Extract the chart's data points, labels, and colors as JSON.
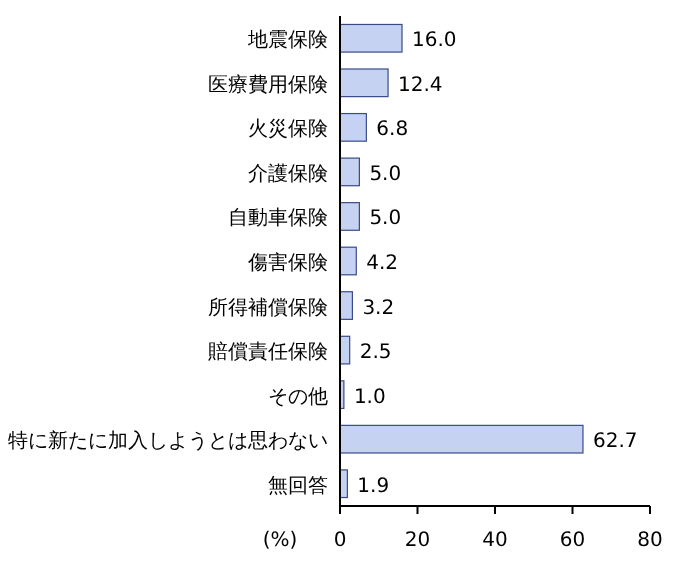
{
  "chart_data": {
    "type": "bar",
    "orientation": "horizontal",
    "categories": [
      "地震保険",
      "医療費用保険",
      "火災保険",
      "介護保険",
      "自動車保険",
      "傷害保険",
      "所得補償保険",
      "賠償責任保険",
      "その他",
      "特に新たに加入しようとは思わない",
      "無回答"
    ],
    "values": [
      16.0,
      12.4,
      6.8,
      5.0,
      5.0,
      4.2,
      3.2,
      2.5,
      1.0,
      62.7,
      1.9
    ],
    "value_labels": [
      "16.0",
      "12.4",
      "6.8",
      "5.0",
      "5.0",
      "4.2",
      "3.2",
      "2.5",
      "1.0",
      "62.7",
      "1.9"
    ],
    "color": "#c6d2f2",
    "xlim": [
      0,
      80
    ],
    "xticks": [
      0,
      20,
      40,
      60,
      80
    ],
    "xlabel": "(%)",
    "grid": false
  }
}
